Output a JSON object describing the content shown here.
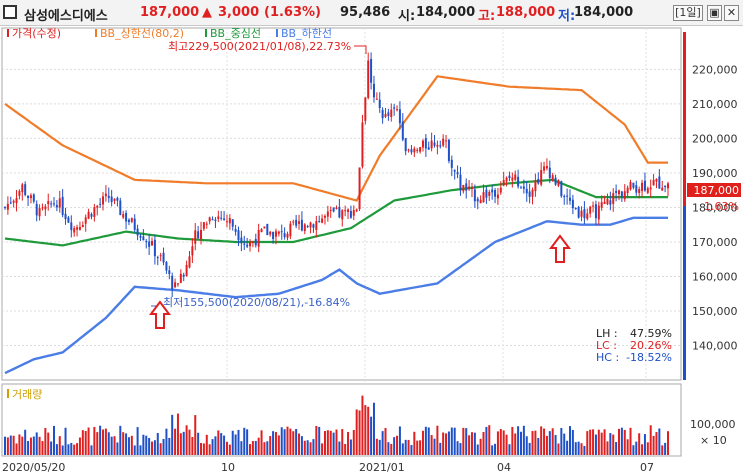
{
  "header": {
    "stock_name": "삼성에스디에스",
    "price": "187,000",
    "change_arrow": "▲",
    "change": "3,000",
    "change_pct": "(1.63%)",
    "volume": "95,486",
    "open_label": "시:",
    "open": "184,000",
    "high_label": "고:",
    "high": "188,000",
    "low_label": "저:",
    "low": "184,000",
    "period_button": "[1일]"
  },
  "legend": {
    "price": "가격(수정)",
    "upper": "BB_상한선(80,2)",
    "middle": "BB_중심선",
    "lower": "BB_하한선",
    "volume": "거래량"
  },
  "annotations": {
    "high": "최고229,500(2021/01/08),22.73%",
    "low": "최저155,500(2020/08/21),-16.84%"
  },
  "stats": {
    "lh_label": "LH :",
    "lh_value": "47.59%",
    "lc_label": "LC :",
    "lc_value": "20.26%",
    "hc_label": "HC :",
    "hc_value": "-18.52%"
  },
  "price_tag": {
    "value": "187,000",
    "pct": "1.63%"
  },
  "colors": {
    "up": "#e02020",
    "down": "#1e50c8",
    "upper_band": "#f07c2a",
    "middle_band": "#1e9a3a",
    "lower_band": "#4a7de6",
    "tag_bg": "#e0201a"
  },
  "chart_data": {
    "type": "candlestick",
    "ylim": [
      130000,
      232000
    ],
    "y_ticks": [
      "220,000",
      "210,000",
      "200,000",
      "190,000",
      "180,000",
      "170,000",
      "160,000",
      "150,000",
      "140,000"
    ],
    "y_tick_values": [
      220000,
      210000,
      200000,
      190000,
      180000,
      170000,
      160000,
      150000,
      140000
    ],
    "x_labels": [
      "2020/05/20",
      "10",
      "2021/01",
      "04",
      "07"
    ],
    "volume_ticks": [
      "100,000",
      "× 10"
    ],
    "close_anchors": [
      [
        0,
        180000
      ],
      [
        6,
        186000
      ],
      [
        12,
        178000
      ],
      [
        18,
        182000
      ],
      [
        24,
        174000
      ],
      [
        30,
        179000
      ],
      [
        36,
        183000
      ],
      [
        42,
        177000
      ],
      [
        48,
        172000
      ],
      [
        54,
        165000
      ],
      [
        58,
        158000
      ],
      [
        62,
        160000
      ],
      [
        66,
        172000
      ],
      [
        72,
        178000
      ],
      [
        78,
        176000
      ],
      [
        84,
        169000
      ],
      [
        90,
        173000
      ],
      [
        96,
        172000
      ],
      [
        102,
        175000
      ],
      [
        108,
        176000
      ],
      [
        114,
        178000
      ],
      [
        118,
        178000
      ],
      [
        122,
        180000
      ],
      [
        124,
        205000
      ],
      [
        126,
        222000
      ],
      [
        128,
        211000
      ],
      [
        132,
        206000
      ],
      [
        136,
        208000
      ],
      [
        140,
        195000
      ],
      [
        146,
        198000
      ],
      [
        152,
        200000
      ],
      [
        158,
        186000
      ],
      [
        164,
        183000
      ],
      [
        170,
        185000
      ],
      [
        176,
        189000
      ],
      [
        182,
        185000
      ],
      [
        188,
        192000
      ],
      [
        194,
        183000
      ],
      [
        200,
        178000
      ],
      [
        206,
        179000
      ],
      [
        212,
        184000
      ],
      [
        218,
        186000
      ],
      [
        224,
        187000
      ],
      [
        230,
        187000
      ]
    ],
    "upper_band_anchors": [
      [
        0,
        210000
      ],
      [
        20,
        198000
      ],
      [
        45,
        188000
      ],
      [
        70,
        187000
      ],
      [
        100,
        187000
      ],
      [
        122,
        182000
      ],
      [
        130,
        195000
      ],
      [
        150,
        218000
      ],
      [
        175,
        215000
      ],
      [
        200,
        214000
      ],
      [
        215,
        204000
      ],
      [
        223,
        193000
      ],
      [
        230,
        193000
      ]
    ],
    "middle_band_anchors": [
      [
        0,
        171000
      ],
      [
        20,
        169000
      ],
      [
        42,
        173000
      ],
      [
        60,
        171000
      ],
      [
        80,
        170000
      ],
      [
        100,
        170000
      ],
      [
        120,
        174000
      ],
      [
        135,
        182000
      ],
      [
        155,
        185000
      ],
      [
        175,
        187000
      ],
      [
        190,
        188000
      ],
      [
        205,
        183000
      ],
      [
        222,
        183000
      ],
      [
        230,
        183000
      ]
    ],
    "lower_band_anchors": [
      [
        0,
        132000
      ],
      [
        10,
        136000
      ],
      [
        20,
        138000
      ],
      [
        35,
        148000
      ],
      [
        45,
        157000
      ],
      [
        60,
        156000
      ],
      [
        80,
        154000
      ],
      [
        95,
        155000
      ],
      [
        110,
        159000
      ],
      [
        116,
        162000
      ],
      [
        122,
        158000
      ],
      [
        130,
        155000
      ],
      [
        150,
        158000
      ],
      [
        170,
        170000
      ],
      [
        188,
        176000
      ],
      [
        200,
        175000
      ],
      [
        210,
        175000
      ],
      [
        218,
        177000
      ],
      [
        230,
        177000
      ]
    ]
  }
}
